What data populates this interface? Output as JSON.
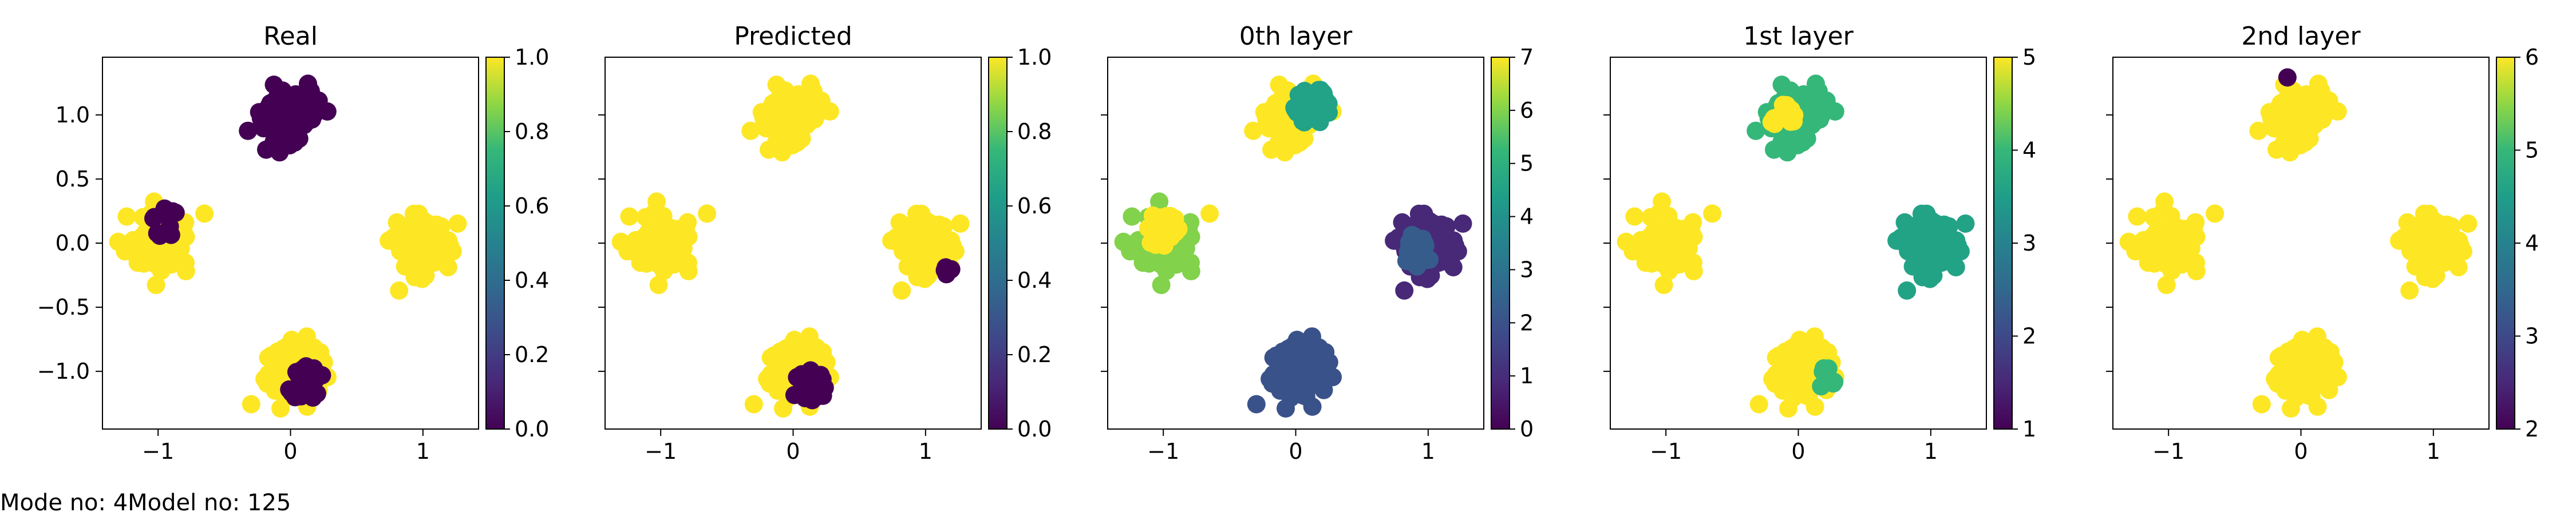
{
  "footer": {
    "mode_text": "Mode no: 4",
    "model_text": "Model no: 125"
  },
  "chart_data": [
    {
      "type": "scatter",
      "title": "Real",
      "xlim": [
        -1.42,
        1.42
      ],
      "ylim": [
        -1.45,
        1.45
      ],
      "xticks": [
        -1,
        0,
        1
      ],
      "xticklabels": [
        "−1",
        "0",
        "1"
      ],
      "yticks": [
        -1.0,
        -0.5,
        0.0,
        0.5,
        1.0
      ],
      "yticklabels": [
        "−1.0",
        "−0.5",
        "0.0",
        "0.5",
        "1.0"
      ],
      "show_yticklabels": true,
      "colormap": "viridis",
      "colorbar": {
        "min": 0.0,
        "max": 1.0,
        "ticks": [
          0.0,
          0.2,
          0.4,
          0.6,
          0.8,
          1.0
        ],
        "ticklabels": [
          "0.0",
          "0.2",
          "0.4",
          "0.6",
          "0.8",
          "1.0"
        ]
      },
      "clusters": [
        {
          "center": [
            0.0,
            1.0
          ],
          "value": 0.0
        },
        {
          "center": [
            -1.0,
            0.0
          ],
          "value": 1.0,
          "overlay": {
            "value": 0.0,
            "offset": [
              0.05,
              0.15
            ],
            "radius": 0.14,
            "count": 14
          }
        },
        {
          "center": [
            1.0,
            0.0
          ],
          "value": 1.0
        },
        {
          "center": [
            0.0,
            -1.0
          ],
          "value": 1.0,
          "overlay": {
            "value": 0.0,
            "offset": [
              0.12,
              -0.1
            ],
            "radius": 0.14,
            "count": 26
          }
        }
      ]
    },
    {
      "type": "scatter",
      "title": "Predicted",
      "xlim": [
        -1.42,
        1.42
      ],
      "ylim": [
        -1.45,
        1.45
      ],
      "xticks": [
        -1,
        0,
        1
      ],
      "xticklabels": [
        "−1",
        "0",
        "1"
      ],
      "yticks": [
        -1.0,
        -0.5,
        0.0,
        0.5,
        1.0
      ],
      "yticklabels": [],
      "show_yticklabels": false,
      "colormap": "viridis",
      "colorbar": {
        "min": 0.0,
        "max": 1.0,
        "ticks": [
          0.0,
          0.2,
          0.4,
          0.6,
          0.8,
          1.0
        ],
        "ticklabels": [
          "0.0",
          "0.2",
          "0.4",
          "0.6",
          "0.8",
          "1.0"
        ]
      },
      "clusters": [
        {
          "center": [
            0.0,
            1.0
          ],
          "value": 1.0
        },
        {
          "center": [
            -1.0,
            0.0
          ],
          "value": 1.0
        },
        {
          "center": [
            1.0,
            0.0
          ],
          "value": 1.0,
          "overlay": {
            "value": 0.0,
            "offset": [
              0.15,
              -0.2
            ],
            "radius": 0.06,
            "count": 5
          }
        },
        {
          "center": [
            0.0,
            -1.0
          ],
          "value": 1.0,
          "overlay": {
            "value": 0.0,
            "offset": [
              0.12,
              -0.1
            ],
            "radius": 0.14,
            "count": 26
          }
        }
      ]
    },
    {
      "type": "scatter",
      "title": "0th layer",
      "xlim": [
        -1.42,
        1.42
      ],
      "ylim": [
        -1.45,
        1.45
      ],
      "xticks": [
        -1,
        0,
        1
      ],
      "xticklabels": [
        "−1",
        "0",
        "1"
      ],
      "yticks": [
        -1.0,
        -0.5,
        0.0,
        0.5,
        1.0
      ],
      "yticklabels": [],
      "show_yticklabels": false,
      "colormap": "viridis",
      "colorbar": {
        "min": 0,
        "max": 7,
        "ticks": [
          0,
          1,
          2,
          3,
          4,
          5,
          6,
          7
        ],
        "ticklabels": [
          "0",
          "1",
          "2",
          "3",
          "4",
          "5",
          "6",
          "7"
        ]
      },
      "clusters": [
        {
          "center": [
            0.0,
            1.0
          ],
          "value": 7,
          "overlay": {
            "value": 4.5,
            "offset": [
              0.13,
              0.07
            ],
            "radius": 0.15,
            "count": 30
          }
        },
        {
          "center": [
            -1.0,
            0.0
          ],
          "value": 6,
          "overlay": {
            "value": 7,
            "offset": [
              0.0,
              0.1
            ],
            "radius": 0.14,
            "count": 24
          }
        },
        {
          "center": [
            1.0,
            0.0
          ],
          "value": 0.9,
          "overlay": {
            "value": 2.3,
            "offset": [
              -0.1,
              -0.06
            ],
            "radius": 0.13,
            "count": 26
          }
        },
        {
          "center": [
            0.0,
            -1.0
          ],
          "value": 2.0
        }
      ]
    },
    {
      "type": "scatter",
      "title": "1st layer",
      "xlim": [
        -1.42,
        1.42
      ],
      "ylim": [
        -1.45,
        1.45
      ],
      "xticks": [
        -1,
        0,
        1
      ],
      "xticklabels": [
        "−1",
        "0",
        "1"
      ],
      "yticks": [
        -1.0,
        -0.5,
        0.0,
        0.5,
        1.0
      ],
      "yticklabels": [],
      "show_yticklabels": false,
      "colormap": "viridis",
      "colorbar": {
        "min": 1,
        "max": 5,
        "ticks": [
          1,
          2,
          3,
          4,
          5
        ],
        "ticklabels": [
          "1",
          "2",
          "3",
          "4",
          "5"
        ]
      },
      "clusters": [
        {
          "center": [
            0.0,
            1.0
          ],
          "value": 4.0,
          "overlay": {
            "value": 5,
            "offset": [
              -0.12,
              0.0
            ],
            "radius": 0.1,
            "count": 14
          }
        },
        {
          "center": [
            -1.0,
            0.0
          ],
          "value": 5
        },
        {
          "center": [
            1.0,
            0.0
          ],
          "value": 3.6
        },
        {
          "center": [
            0.0,
            -1.0
          ],
          "value": 5,
          "overlay": {
            "value": 4.0,
            "offset": [
              0.2,
              -0.05
            ],
            "radius": 0.08,
            "count": 8
          }
        }
      ]
    },
    {
      "type": "scatter",
      "title": "2nd layer",
      "xlim": [
        -1.42,
        1.42
      ],
      "ylim": [
        -1.45,
        1.45
      ],
      "xticks": [
        -1,
        0,
        1
      ],
      "xticklabels": [
        "−1",
        "0",
        "1"
      ],
      "yticks": [
        -1.0,
        -0.5,
        0.0,
        0.5,
        1.0
      ],
      "yticklabels": [],
      "show_yticklabels": false,
      "colormap": "viridis",
      "colorbar": {
        "min": 2,
        "max": 6,
        "ticks": [
          2,
          3,
          4,
          5,
          6
        ],
        "ticklabels": [
          "2",
          "3",
          "4",
          "5",
          "6"
        ]
      },
      "clusters": [
        {
          "center": [
            0.0,
            1.0
          ],
          "value": 6,
          "overlay": {
            "value": 2,
            "offset": [
              -0.1,
              0.3
            ],
            "radius": 0.02,
            "count": 1
          }
        },
        {
          "center": [
            -1.0,
            0.0
          ],
          "value": 6
        },
        {
          "center": [
            1.0,
            0.0
          ],
          "value": 6
        },
        {
          "center": [
            0.0,
            -1.0
          ],
          "value": 6
        }
      ]
    }
  ]
}
